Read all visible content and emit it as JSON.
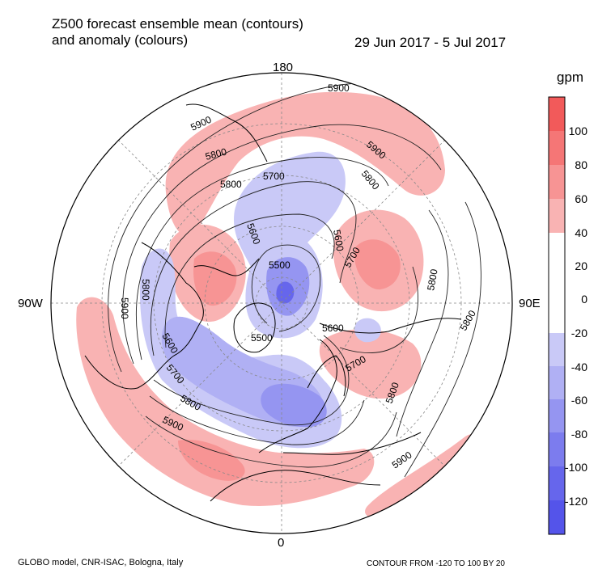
{
  "title": {
    "line1": "Z500 forecast ensemble mean (contours)",
    "line2": "and anomaly (colours)"
  },
  "date_range": "29 Jun 2017 - 5 Jul 2017",
  "longitude_labels": {
    "top": "180",
    "bottom": "0",
    "left": "90W",
    "right": "90E"
  },
  "colorbar": {
    "unit": "gpm",
    "levels": [
      "100",
      "80",
      "60",
      "40",
      "20",
      "0",
      "-20",
      "-40",
      "-60",
      "-80",
      "-100",
      "-120"
    ],
    "colors": [
      "#f25a5a",
      "#f57676",
      "#f79494",
      "#f9b3b3",
      "#ffffff",
      "#c9c9f7",
      "#b0b0f4",
      "#9595f1",
      "#7c7cee",
      "#6666ec",
      "#5454ea"
    ]
  },
  "contour_labels": [
    "5900",
    "5900",
    "5900",
    "5800",
    "5800",
    "5700",
    "5600",
    "5600",
    "5500",
    "5500",
    "5700",
    "5800",
    "5800",
    "5700",
    "5600",
    "5800",
    "5800",
    "5900",
    "5900",
    "5800",
    "5600",
    "5700",
    "5800",
    "5900"
  ],
  "footer": {
    "left": "GLOBO model, CNR-ISAC, Bologna, Italy",
    "right": "CONTOUR FROM -120 TO 100 BY 20"
  }
}
